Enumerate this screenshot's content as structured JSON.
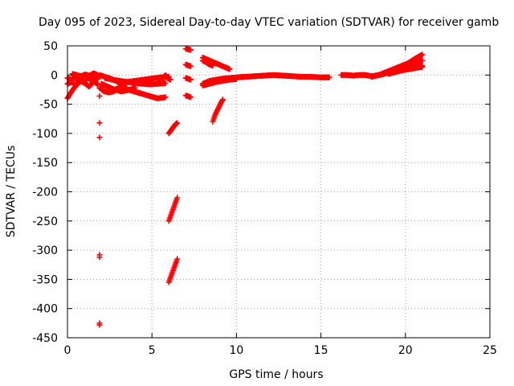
{
  "chart_data": {
    "type": "scatter",
    "title": "Day 095 of 2023, Sidereal Day-to-day VTEC variation (SDTVAR) for receiver gamb",
    "xlabel": "GPS time / hours",
    "ylabel": "SDTVAR / TECUs",
    "xlim": [
      0,
      25
    ],
    "ylim": [
      -450,
      50
    ],
    "xticks": [
      0,
      5,
      10,
      15,
      20,
      25
    ],
    "yticks": [
      50,
      0,
      -50,
      -100,
      -150,
      -200,
      -250,
      -300,
      -350,
      -400,
      -450
    ],
    "grid": true,
    "marker": "+",
    "color": "#ff0000",
    "segments": [
      {
        "x0": 0.0,
        "x1": 1.8,
        "y": [
          -5,
          -8,
          -3,
          -10,
          -6,
          -12,
          -4,
          -9,
          -2,
          -7
        ]
      },
      {
        "x0": 0.0,
        "x1": 1.8,
        "y": [
          -15,
          -12,
          -18,
          -10,
          -14,
          -20,
          -11,
          -16
        ]
      },
      {
        "x0": 0.0,
        "x1": 0.8,
        "y": [
          -40,
          -30,
          -22,
          -15,
          -10
        ]
      },
      {
        "x0": 0.3,
        "x1": 1.8,
        "y": [
          2,
          0,
          -2,
          1,
          -1,
          3,
          0
        ]
      },
      {
        "x0": 1.9,
        "x1": 3.5,
        "y": [
          0,
          -3,
          -6,
          -10,
          -14,
          -16
        ]
      },
      {
        "x0": 1.9,
        "x1": 3.0,
        "y": [
          -22,
          -28,
          -30,
          -28,
          -24
        ]
      },
      {
        "x0": 2.0,
        "x1": 4.0,
        "y": [
          -15,
          -20,
          -25,
          -28,
          -26,
          -22
        ]
      },
      {
        "x0": 2.2,
        "x1": 5.8,
        "y": [
          -5,
          -8,
          -10,
          -12,
          -14,
          -15,
          -16,
          -15,
          -14
        ]
      },
      {
        "x0": 3.0,
        "x1": 5.8,
        "y": [
          -20,
          -24,
          -28,
          -32,
          -36,
          -40,
          -38
        ]
      },
      {
        "x0": 3.5,
        "x1": 6.0,
        "y": [
          -12,
          -10,
          -8,
          -6,
          -4,
          -3
        ]
      },
      {
        "x0": 5.5,
        "x1": 6.1,
        "y": [
          -10,
          -5,
          0,
          -6,
          -8
        ]
      },
      {
        "x0": 6.0,
        "x1": 6.5,
        "y": [
          -100,
          -95,
          -90,
          -85,
          -82
        ]
      },
      {
        "x0": 6.0,
        "x1": 6.5,
        "y": [
          -250,
          -240,
          -230,
          -220,
          -210
        ]
      },
      {
        "x0": 6.0,
        "x1": 6.5,
        "y": [
          -355,
          -345,
          -335,
          -325,
          -315
        ]
      },
      {
        "x0": 7.0,
        "x1": 7.3,
        "y": [
          45,
          43
        ]
      },
      {
        "x0": 7.0,
        "x1": 7.3,
        "y": [
          18,
          15
        ]
      },
      {
        "x0": 7.0,
        "x1": 7.3,
        "y": [
          -5,
          -8
        ]
      },
      {
        "x0": 7.0,
        "x1": 7.3,
        "y": [
          -35,
          -38
        ]
      },
      {
        "x0": 8.0,
        "x1": 9.6,
        "y": [
          30,
          26,
          22,
          18,
          14,
          10
        ]
      },
      {
        "x0": 8.0,
        "x1": 8.6,
        "y": [
          25,
          22,
          18,
          16
        ]
      },
      {
        "x0": 8.0,
        "x1": 10.5,
        "y": [
          -15,
          -10,
          -8,
          -6,
          -5,
          -4,
          -3
        ]
      },
      {
        "x0": 8.0,
        "x1": 10.0,
        "y": [
          -18,
          -15,
          -12,
          -10,
          -8,
          -7
        ]
      },
      {
        "x0": 8.6,
        "x1": 9.2,
        "y": [
          -80,
          -70,
          -62,
          -55,
          -48,
          -42
        ]
      },
      {
        "x0": 10.0,
        "x1": 15.5,
        "y": [
          -4,
          -3,
          -2,
          -1,
          0,
          -1,
          -2,
          -3,
          -3,
          -4,
          -4
        ]
      },
      {
        "x0": 16.2,
        "x1": 18.0,
        "y": [
          0,
          0,
          -1,
          0,
          0,
          -2
        ]
      },
      {
        "x0": 18.0,
        "x1": 21.0,
        "y": [
          -3,
          0,
          5,
          10,
          15,
          20,
          28,
          35
        ]
      },
      {
        "x0": 18.0,
        "x1": 21.0,
        "y": [
          -2,
          0,
          3,
          6,
          9,
          12,
          14,
          16
        ]
      },
      {
        "x0": 18.5,
        "x1": 21.0,
        "y": [
          0,
          4,
          8,
          12,
          16,
          22,
          25
        ]
      },
      {
        "x0": 19.0,
        "x1": 21.0,
        "y": [
          2,
          5,
          8,
          10,
          12,
          14
        ]
      }
    ],
    "isolated_points": [
      {
        "x": 1.9,
        "y": -36
      },
      {
        "x": 1.9,
        "y": -82
      },
      {
        "x": 1.9,
        "y": -107
      },
      {
        "x": 1.9,
        "y": -308
      },
      {
        "x": 1.9,
        "y": -312
      },
      {
        "x": 1.9,
        "y": -425
      },
      {
        "x": 1.9,
        "y": -428
      }
    ]
  }
}
